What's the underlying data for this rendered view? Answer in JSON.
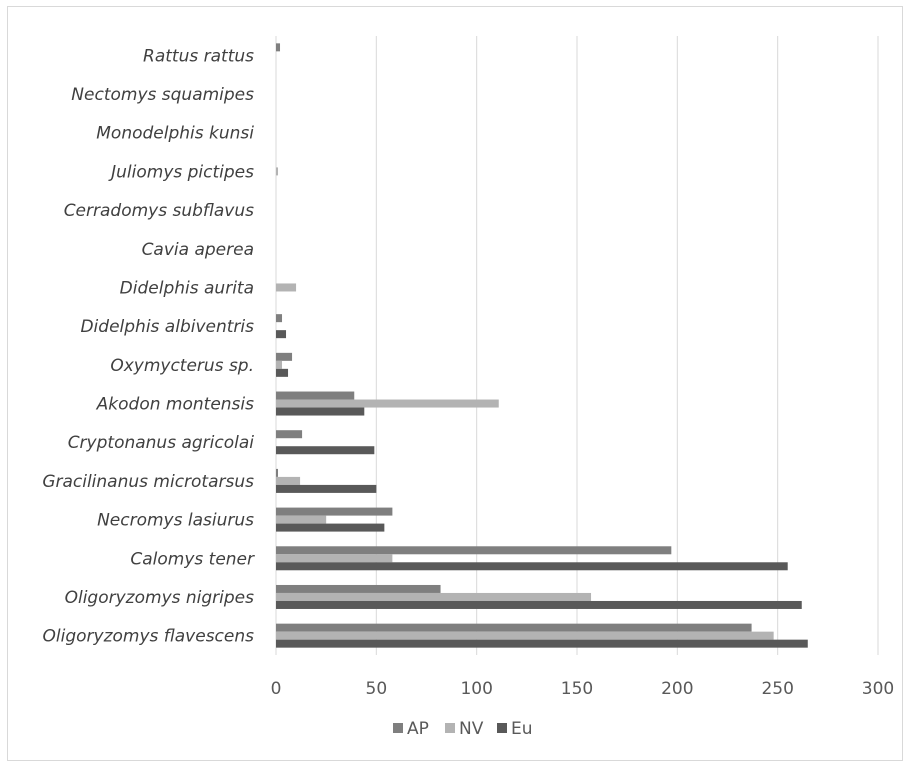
{
  "chart_data": {
    "type": "bar",
    "orientation": "horizontal",
    "categories": [
      "Oligoryzomys flavescens",
      "Oligoryzomys nigripes",
      "Calomys tener",
      "Necromys lasiurus",
      "Gracilinanus microtarsus",
      "Cryptonanus agricolai",
      "Akodon montensis",
      "Oxymycterus sp.",
      "Didelphis albiventris",
      "Didelphis aurita",
      "Cavia aperea",
      "Cerradomys subflavus",
      "Juliomys pictipes",
      "Monodelphis kunsi",
      "Nectomys squamipes",
      "Rattus rattus"
    ],
    "series": [
      {
        "name": "AP",
        "color": "#7f7f7f",
        "values": [
          237,
          82,
          197,
          58,
          1,
          13,
          39,
          8,
          3,
          0,
          0,
          0,
          0,
          0,
          0,
          2
        ]
      },
      {
        "name": "NV",
        "color": "#b3b3b3",
        "values": [
          248,
          157,
          58,
          25,
          12,
          0,
          111,
          3,
          0,
          10,
          0,
          0,
          1,
          0,
          0,
          0
        ]
      },
      {
        "name": "Eu",
        "color": "#595959",
        "values": [
          265,
          262,
          255,
          54,
          50,
          49,
          44,
          6,
          5,
          0,
          0,
          0,
          0,
          0,
          0,
          0
        ]
      }
    ],
    "xticks": [
      0,
      50,
      100,
      150,
      200,
      250,
      300
    ],
    "xlim": [
      0,
      300
    ],
    "grid": true,
    "legend_position": "bottom",
    "title": "",
    "xlabel": "",
    "ylabel": ""
  }
}
